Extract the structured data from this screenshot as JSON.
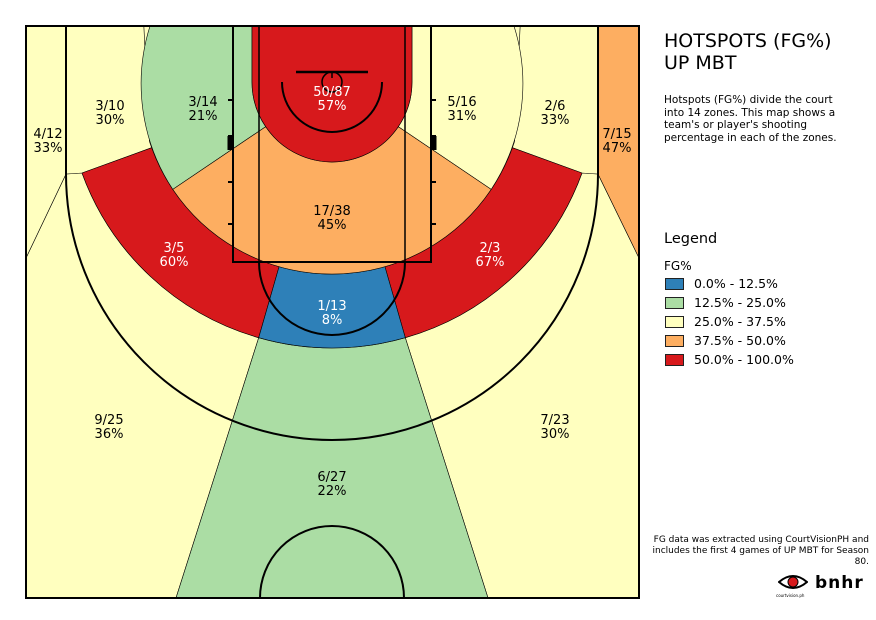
{
  "title": "HOTSPOTS (FG%)",
  "subtitle": "UP MBT",
  "description": "Hotspots (FG%) divide the court into 14 zones. This map shows a team's or player's shooting percentage in each of the zones.",
  "footnote": "FG data was extracted using CourtVisionPH and includes the first 4 games of UP MBT for Season 80.",
  "logos": {
    "courtvision": "courtvision.ph",
    "bnhr": "bnhr"
  },
  "legend": {
    "title": "Legend",
    "subtitle": "FG%",
    "items": [
      {
        "label": "0.0% - 12.5%",
        "color": "#2e80b8"
      },
      {
        "label": "12.5% - 25.0%",
        "color": "#abdda4"
      },
      {
        "label": "25.0% - 37.5%",
        "color": "#ffffbf"
      },
      {
        "label": "37.5% - 50.0%",
        "color": "#fdae61"
      },
      {
        "label": "50.0% - 100.0%",
        "color": "#d7191c"
      }
    ]
  },
  "chart_data": {
    "type": "heatmap",
    "zones": [
      {
        "id": "left-corner-three",
        "made": 4,
        "attempts": 12,
        "label": "4/12",
        "pct": "33%"
      },
      {
        "id": "left-wing-three",
        "made": 3,
        "attempts": 10,
        "label": "3/10",
        "pct": "30%"
      },
      {
        "id": "left-baseline-midrange",
        "made": 3,
        "attempts": 14,
        "label": "3/14",
        "pct": "21%"
      },
      {
        "id": "restricted-area",
        "made": 50,
        "attempts": 87,
        "label": "50/87",
        "pct": "57%"
      },
      {
        "id": "right-baseline-midrange",
        "made": 5,
        "attempts": 16,
        "label": "5/16",
        "pct": "31%"
      },
      {
        "id": "right-wing-three",
        "made": 2,
        "attempts": 6,
        "label": "2/6",
        "pct": "33%"
      },
      {
        "id": "right-corner-three",
        "made": 7,
        "attempts": 15,
        "label": "7/15",
        "pct": "47%"
      },
      {
        "id": "paint",
        "made": 17,
        "attempts": 38,
        "label": "17/38",
        "pct": "45%"
      },
      {
        "id": "left-elbow-midrange",
        "made": 3,
        "attempts": 5,
        "label": "3/5",
        "pct": "60%"
      },
      {
        "id": "right-elbow-midrange",
        "made": 2,
        "attempts": 3,
        "label": "2/3",
        "pct": "67%"
      },
      {
        "id": "top-key-midrange",
        "made": 1,
        "attempts": 13,
        "label": "1/13",
        "pct": "8%"
      },
      {
        "id": "left-above-break-three",
        "made": 9,
        "attempts": 25,
        "label": "9/25",
        "pct": "36%"
      },
      {
        "id": "top-three",
        "made": 6,
        "attempts": 27,
        "label": "6/27",
        "pct": "22%"
      },
      {
        "id": "right-above-break-three",
        "made": 7,
        "attempts": 23,
        "label": "7/23",
        "pct": "30%"
      }
    ]
  }
}
